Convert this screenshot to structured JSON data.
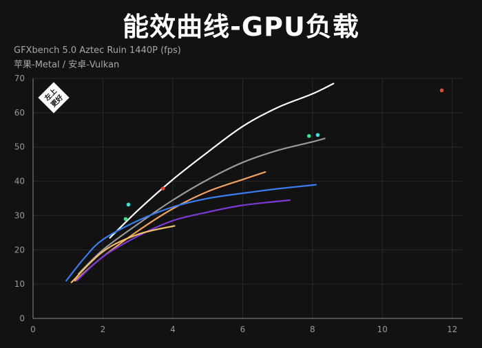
{
  "chart_data": {
    "type": "line",
    "title": "能效曲线-GPU负载",
    "subtitle_lines": [
      "GFXbench 5.0 Aztec Ruin 1440P (fps)",
      "苹果-Metal / 安卓-Vulkan"
    ],
    "badge_text": "左上更好",
    "xlabel": "",
    "ylabel": "",
    "xlim": [
      0,
      12.3
    ],
    "ylim": [
      0,
      70
    ],
    "x_ticks": [
      0,
      2,
      4,
      6,
      8,
      10,
      12
    ],
    "y_ticks": [
      0,
      10,
      20,
      30,
      40,
      50,
      60,
      70
    ],
    "grid": true,
    "background": "#121212",
    "series": [
      {
        "color": "#ffffff",
        "x": [
          2.2,
          3.0,
          4.0,
          5.0,
          6.0,
          7.0,
          8.0,
          8.6
        ],
        "y": [
          23.5,
          31.5,
          40.5,
          48.5,
          56.0,
          61.5,
          65.5,
          68.5
        ]
      },
      {
        "color": "#9a9a9a",
        "x": [
          1.3,
          2.0,
          3.0,
          4.0,
          5.0,
          6.0,
          7.0,
          8.0,
          8.35
        ],
        "y": [
          13.0,
          20.0,
          27.5,
          34.5,
          40.5,
          45.5,
          49.0,
          51.5,
          52.5
        ]
      },
      {
        "color": "#f2a25c",
        "x": [
          1.2,
          2.0,
          3.0,
          4.0,
          5.0,
          6.0,
          6.65
        ],
        "y": [
          11.0,
          18.0,
          25.5,
          32.0,
          37.0,
          40.5,
          42.7
        ]
      },
      {
        "color": "#3a7df0",
        "x": [
          0.95,
          1.5,
          2.0,
          3.0,
          4.0,
          5.0,
          6.0,
          7.0,
          8.1
        ],
        "y": [
          11.0,
          18.0,
          23.0,
          28.5,
          32.5,
          35.0,
          36.5,
          37.8,
          39.0
        ]
      },
      {
        "color": "#7b3ad6",
        "x": [
          1.25,
          2.0,
          3.0,
          4.0,
          5.0,
          6.0,
          7.35
        ],
        "y": [
          11.0,
          18.0,
          24.0,
          28.5,
          31.0,
          33.0,
          34.5
        ]
      },
      {
        "color": "#f3c06e",
        "x": [
          1.1,
          2.0,
          3.0,
          4.05
        ],
        "y": [
          10.5,
          19.5,
          24.5,
          27.0
        ]
      }
    ],
    "points": [
      {
        "x": 2.73,
        "y": 33.2,
        "color": "#3ee0e0"
      },
      {
        "x": 2.65,
        "y": 29.0,
        "color": "#3ee08a"
      },
      {
        "x": 3.72,
        "y": 37.9,
        "color": "#e04a3a"
      },
      {
        "x": 7.9,
        "y": 53.2,
        "color": "#3ee08a"
      },
      {
        "x": 8.15,
        "y": 53.5,
        "color": "#3ee0e0"
      },
      {
        "x": 11.7,
        "y": 66.5,
        "color": "#e04a3a"
      }
    ]
  }
}
